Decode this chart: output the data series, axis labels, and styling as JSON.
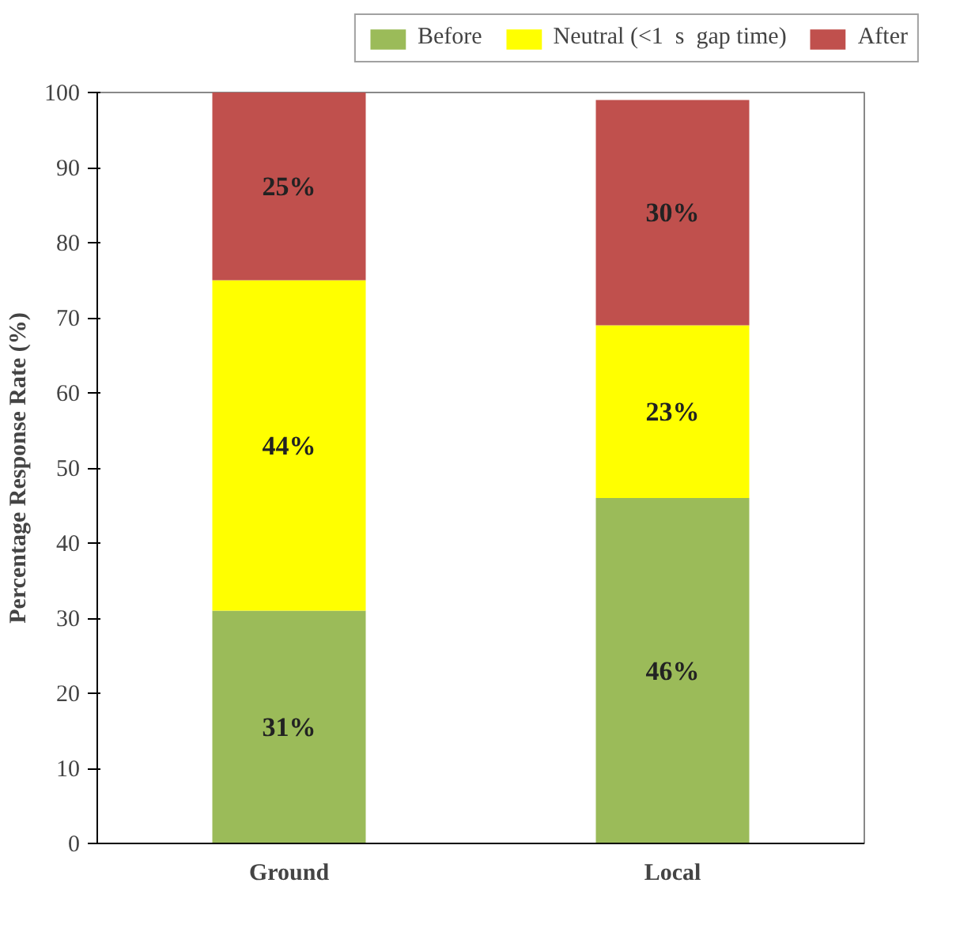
{
  "chart_data": {
    "type": "bar",
    "stacked": true,
    "categories": [
      "Ground",
      "Local"
    ],
    "ylabel": "Percentage Response Rate (%)",
    "ylim": [
      0,
      100
    ],
    "yticks": [
      0,
      10,
      20,
      30,
      40,
      50,
      60,
      70,
      80,
      90,
      100
    ],
    "legend": "top",
    "grid": false,
    "series": [
      {
        "name": "Before",
        "color": "#9bbb59",
        "values": [
          31,
          46
        ],
        "value_labels": [
          "31%",
          "46%"
        ]
      },
      {
        "name": "Neutral (<1  s  gap time)",
        "color": "#ffff00",
        "values": [
          44,
          23
        ],
        "value_labels": [
          "44%",
          "23%"
        ]
      },
      {
        "name": "After",
        "color": "#c0504d",
        "values": [
          25,
          30
        ],
        "value_labels": [
          "25%",
          "30%"
        ]
      }
    ]
  }
}
